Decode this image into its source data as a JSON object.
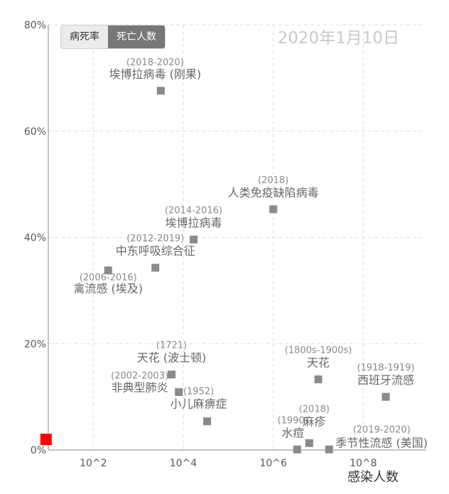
{
  "toggle": {
    "left_label": "病死率",
    "right_label": "死亡人数",
    "active": "right"
  },
  "date_label": "2020年1月10日",
  "colors": {
    "marker": "#8a8a8a",
    "highlight": "#ff0000",
    "label": "#666666",
    "axis": "#555555",
    "grid": "#dddddd"
  },
  "chart_data": {
    "type": "scatter",
    "title": "",
    "xlabel": "感染人数",
    "ylabel": "",
    "x_scale": "log10",
    "xlim": [
      1.0,
      9.4
    ],
    "ylim": [
      0,
      80
    ],
    "x_ticks": [
      {
        "value": 2,
        "label": "10^2"
      },
      {
        "value": 4,
        "label": "10^4"
      },
      {
        "value": 6,
        "label": "10^6"
      },
      {
        "value": 8,
        "label": "10^8"
      }
    ],
    "y_ticks": [
      {
        "value": 80,
        "label": "80%"
      },
      {
        "value": 60,
        "label": "60%"
      },
      {
        "value": 40,
        "label": "40%"
      },
      {
        "value": 20,
        "label": "20%"
      },
      {
        "value": 0,
        "label": "0%"
      }
    ],
    "points": [
      {
        "name": "埃博拉病毒 (刚果)",
        "years": "(2018-2020)",
        "log_x": 3.5,
        "y": 67.6
      },
      {
        "name": "人类免疫缺陷病毒",
        "years": "(2018)",
        "log_x": 6.0,
        "y": 45.3
      },
      {
        "name": "埃博拉病毒",
        "years": "(2014-2016)",
        "log_x": 4.23,
        "y": 39.6
      },
      {
        "name": "中东呼吸综合征",
        "years": "(2012-2019)",
        "log_x": 3.38,
        "y": 34.3
      },
      {
        "name": "禽流感 (埃及)",
        "years": "(2006-2016)",
        "log_x": 2.33,
        "y": 33.8
      },
      {
        "name": "天花 (波士顿)",
        "years": "(1721)",
        "log_x": 3.74,
        "y": 14.2
      },
      {
        "name": "非典型肺炎",
        "years": "(2002-2003)",
        "log_x": 3.9,
        "y": 10.9
      },
      {
        "name": "小儿麻痹症",
        "years": "(1952)",
        "log_x": 4.53,
        "y": 5.4
      },
      {
        "name": "天花",
        "years": "(1800s-1900s)",
        "log_x": 7.0,
        "y": 13.3
      },
      {
        "name": "西班牙流感",
        "years": "(1918-1919)",
        "log_x": 8.5,
        "y": 10.0
      },
      {
        "name": "水痘",
        "years": "(1990)",
        "log_x": 6.53,
        "y": 0.1
      },
      {
        "name": "麻疹",
        "years": "(2018)",
        "log_x": 6.8,
        "y": 1.3
      },
      {
        "name": "季节性流感 (美国)",
        "years": "(2019-2020)",
        "log_x": 7.24,
        "y": 0.1
      }
    ],
    "highlight_point": {
      "log_x": 0.95,
      "y": 2.0
    }
  }
}
